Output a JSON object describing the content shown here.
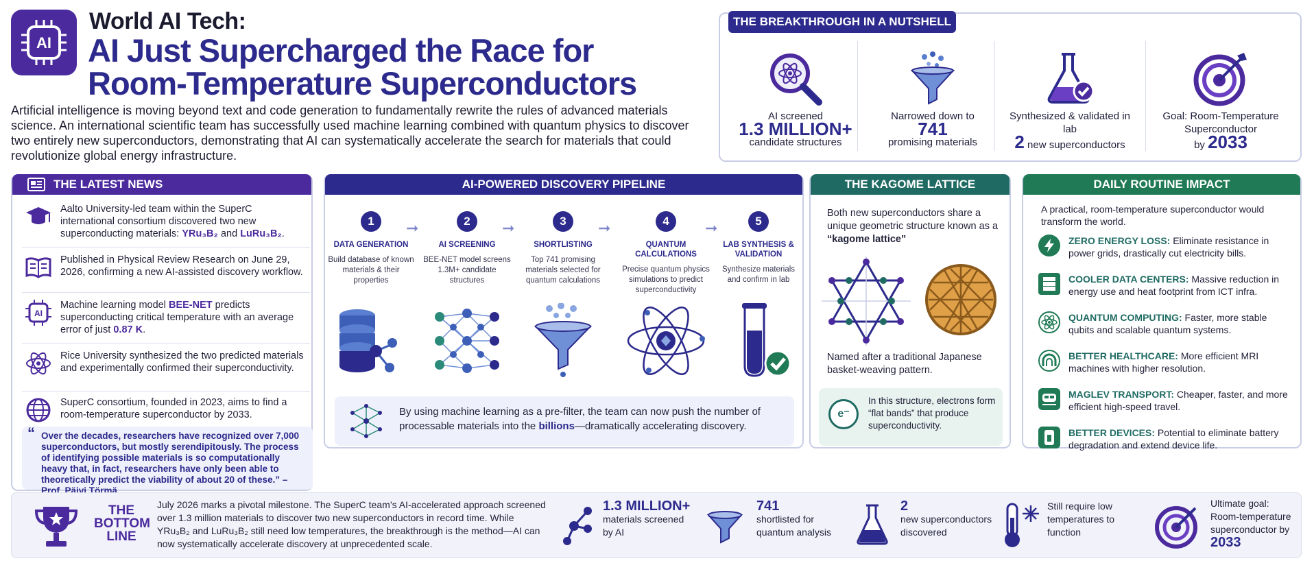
{
  "header": {
    "logo_label": "AI",
    "kicker": "World AI Tech:",
    "title": "AI Just Supercharged the Race for Room-Temperature Superconductors",
    "intro": "Artificial intelligence is moving beyond text and code generation to fundamentally rewrite the rules of advanced materials science. An international scientific team has successfully used machine learning combined with quantum physics to discover two entirely new superconductors, demonstrating that AI can systematically accelerate the search for materials that could revolutionize global energy infrastructure."
  },
  "nutshell": {
    "heading": "THE BREAKTHROUGH IN A NUTSHELL",
    "items": [
      {
        "top": "AI screened",
        "big": "1.3 MILLION+",
        "bottom": "candidate structures",
        "icon": "magnifier-atom-icon"
      },
      {
        "top": "Narrowed down to",
        "big": "741",
        "bottom": "promising materials",
        "icon": "funnel-icon"
      },
      {
        "top": "Synthesized & validated in lab",
        "big": "2",
        "bottom": "new superconductors",
        "icon": "flask-check-icon"
      },
      {
        "top": "Goal: Room-Temperature Superconductor",
        "big": "2033",
        "bottom": "by",
        "icon": "target-icon"
      }
    ]
  },
  "latest": {
    "heading": "THE LATEST NEWS",
    "items": [
      {
        "text": "Aalto University-led team within the SuperC international consortium discovered two new superconducting materials: ",
        "highlight": "YRu₃B₂",
        "text2": " and ",
        "highlight2": "LuRu₃B₂",
        "text3": "."
      },
      {
        "text": "Published in Physical Review Research on June 29, 2026, confirming a new AI-assisted discovery workflow."
      },
      {
        "text": "Machine learning model ",
        "highlight": "BEE-NET",
        "text2": " predicts superconducting critical temperature with an average error of just ",
        "highlight2": "0.87 K",
        "text3": "."
      },
      {
        "text": "Rice University synthesized the two predicted materials and experimentally confirmed their superconductivity."
      },
      {
        "text": "SuperC consortium, founded in 2023, aims to find a room-temperature superconductor by 2033."
      }
    ],
    "quote": "Over the decades, researchers have recognized over 7,000 superconductors, but mostly serendipitously. The process of identifying possible materials is so computationally heavy that, in fact, researchers have only been able to theoretically predict the viability of about 20 of these.",
    "quote_author": "– Prof. Päivi Törmä"
  },
  "pipeline": {
    "heading": "AI-POWERED DISCOVERY PIPELINE",
    "steps": [
      {
        "num": "1",
        "title": "DATA GENERATION",
        "desc": "Build database of known materials & their properties"
      },
      {
        "num": "2",
        "title": "AI SCREENING",
        "desc": "BEE-NET model screens 1.3M+ candidate structures"
      },
      {
        "num": "3",
        "title": "SHORTLISTING",
        "desc": "Top 741 promising materials selected for quantum calculations"
      },
      {
        "num": "4",
        "title": "QUANTUM CALCULATIONS",
        "desc": "Precise quantum physics simulations to predict superconductivity"
      },
      {
        "num": "5",
        "title": "LAB SYNTHESIS & VALIDATION",
        "desc": "Synthesize materials and confirm in lab"
      }
    ],
    "note_a": "By using machine learning as a pre-filter, the team can now push the number of processable materials into the ",
    "note_hl": "billions",
    "note_b": "—dramatically accelerating discovery."
  },
  "kagome": {
    "heading": "THE KAGOME LATTICE",
    "desc_a": "Both new superconductors share a unique geometric structure known as a ",
    "desc_hl": "“kagome lattice”",
    "named": "Named after a traditional Japanese basket-weaving pattern.",
    "badge": "e⁻",
    "note": "In this structure, electrons form “flat bands” that produce superconductivity."
  },
  "daily": {
    "heading": "DAILY ROUTINE IMPACT",
    "intro": "A practical, room-temperature superconductor would transform the world.",
    "items": [
      {
        "title": "ZERO ENERGY LOSS:",
        "text": " Eliminate resistance in power grids, drastically cut electricity bills.",
        "icon": "lightning-icon"
      },
      {
        "title": "COOLER DATA CENTERS:",
        "text": " Massive reduction in energy use and heat footprint from ICT infra.",
        "icon": "server-icon"
      },
      {
        "title": "QUANTUM COMPUTING:",
        "text": " Faster, more stable qubits and scalable quantum systems.",
        "icon": "atom-icon"
      },
      {
        "title": "BETTER HEALTHCARE:",
        "text": " More efficient MRI machines with higher resolution.",
        "icon": "mri-icon"
      },
      {
        "title": "MAGLEV TRANSPORT:",
        "text": " Cheaper, faster, and more efficient high-speed travel.",
        "icon": "train-icon"
      },
      {
        "title": "BETTER DEVICES:",
        "text": " Potential to eliminate battery degradation and extend device life.",
        "icon": "phone-icon"
      }
    ]
  },
  "bottom": {
    "title": "THE BOTTOM LINE",
    "text": "July 2026 marks a pivotal milestone. The SuperC team’s AI-accelerated approach screened over 1.3 million materials to discover two new superconductors in record time. While YRu₃B₂ and LuRu₃B₂ still need low temperatures, the breakthrough is the method—AI can now systematically accelerate discovery at unprecedented scale.",
    "stats": [
      {
        "big": "1.3 MILLION+",
        "text": "materials screened by AI"
      },
      {
        "big": "741",
        "text": "shortlisted for quantum analysis"
      },
      {
        "big": "2",
        "text": "new superconductors discovered"
      },
      {
        "big": "",
        "text": "Still require low temperatures to function"
      },
      {
        "big": "2033",
        "text": "Ultimate goal: Room-temperature superconductor by"
      }
    ]
  },
  "colors": {
    "navy": "#2c2a8c",
    "purple": "#4b2a9e",
    "teal": "#1f6b63",
    "green": "#1f7a55"
  }
}
